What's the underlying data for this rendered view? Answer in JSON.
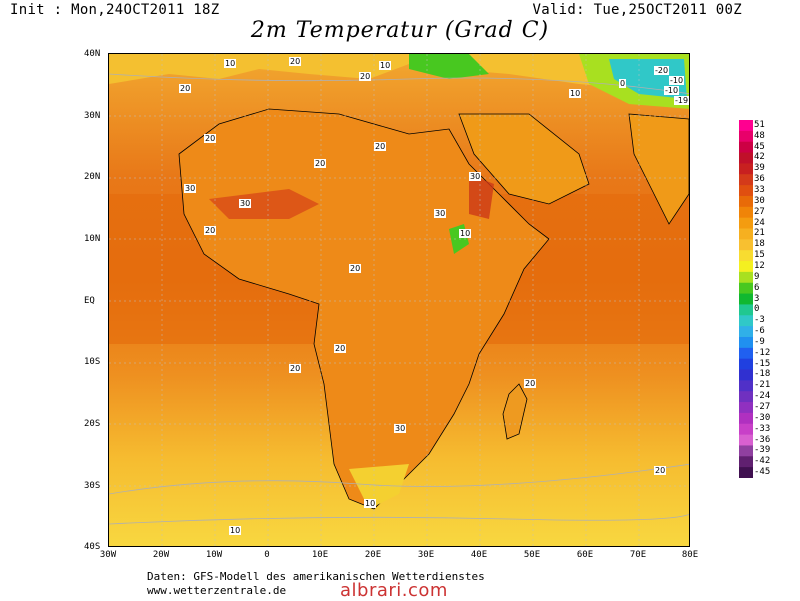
{
  "header": {
    "init": "Init : Mon,24OCT2011 18Z",
    "valid": "Valid: Tue,25OCT2011 00Z",
    "title": "2m Temperatur (Grad C)"
  },
  "map": {
    "region": "Africa",
    "lat_labels": [
      "40N",
      "30N",
      "20N",
      "10N",
      "EQ",
      "10S",
      "20S",
      "30S",
      "40S"
    ],
    "lon_labels": [
      "30W",
      "20W",
      "10W",
      "0",
      "10E",
      "20E",
      "30E",
      "40E",
      "50E",
      "60E",
      "70E",
      "80E"
    ],
    "contour_labels": [
      {
        "text": "20"
      },
      {
        "text": "20"
      },
      {
        "text": "20"
      },
      {
        "text": "20"
      },
      {
        "text": "20"
      },
      {
        "text": "20"
      },
      {
        "text": "20"
      },
      {
        "text": "20"
      },
      {
        "text": "20"
      },
      {
        "text": "20"
      },
      {
        "text": "20"
      },
      {
        "text": "20"
      },
      {
        "text": "30"
      },
      {
        "text": "30"
      },
      {
        "text": "30"
      },
      {
        "text": "30"
      },
      {
        "text": "30"
      },
      {
        "text": "10"
      },
      {
        "text": "10"
      },
      {
        "text": "10"
      },
      {
        "text": "10"
      },
      {
        "text": "10"
      },
      {
        "text": "10"
      },
      {
        "text": "-20"
      },
      {
        "text": "-10"
      },
      {
        "text": "-10"
      },
      {
        "text": "-19"
      },
      {
        "text": "0"
      }
    ]
  },
  "colorbar": {
    "labels": [
      "51",
      "48",
      "45",
      "42",
      "39",
      "36",
      "33",
      "30",
      "27",
      "24",
      "21",
      "18",
      "15",
      "12",
      "9",
      "6",
      "3",
      "0",
      "-3",
      "-6",
      "-9",
      "-12",
      "-15",
      "-18",
      "-21",
      "-24",
      "-27",
      "-30",
      "-33",
      "-36",
      "-39",
      "-42",
      "-45"
    ],
    "colors": [
      "#ff0090",
      "#e8006a",
      "#cc0044",
      "#c0102a",
      "#c82020",
      "#d43a1a",
      "#e04f10",
      "#e86a08",
      "#f08408",
      "#f49c10",
      "#f6b020",
      "#f8c030",
      "#f8dc30",
      "#f4f020",
      "#a8e020",
      "#48c820",
      "#10b830",
      "#20c890",
      "#30c8c8",
      "#30b0e8",
      "#2090f0",
      "#2060f0",
      "#2040e0",
      "#3030d0",
      "#5030c8",
      "#7030c0",
      "#9030c0",
      "#b030c0",
      "#c840c8",
      "#d860d0",
      "#9040a0",
      "#602070",
      "#401050"
    ]
  },
  "footer": {
    "line1": "Daten: GFS-Modell des amerikanischen Wetterdienstes",
    "line2": "www.wetterzentrale.de",
    "watermark": "albrari.com"
  }
}
